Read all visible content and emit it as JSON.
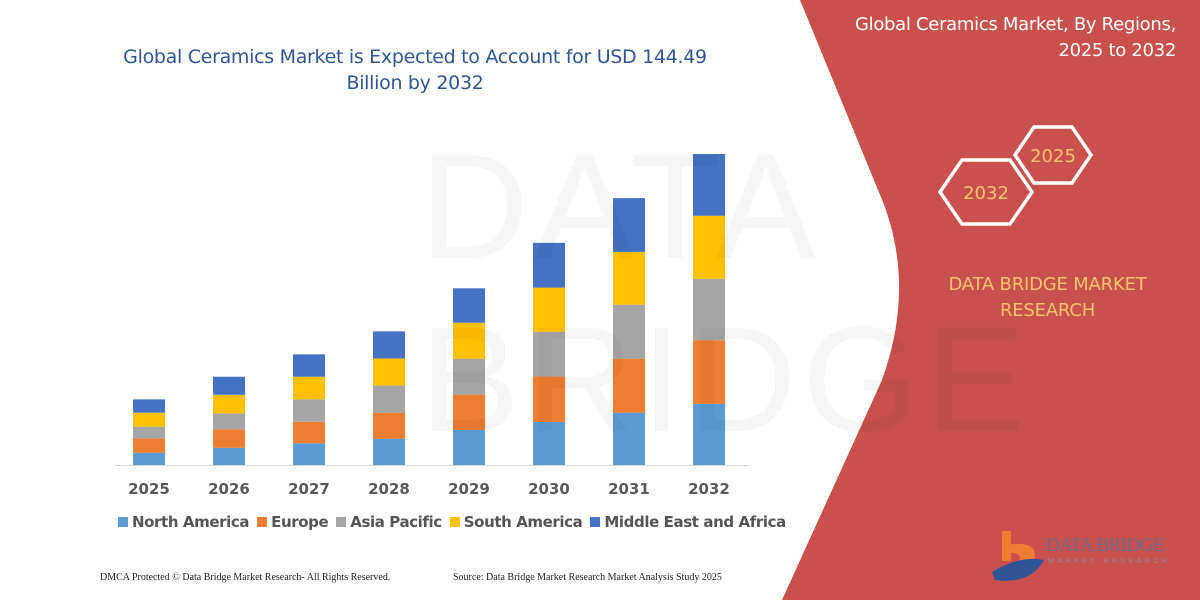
{
  "chart_data": {
    "type": "bar",
    "stacked": true,
    "title": "Global Ceramics Market is Expected to Account for USD 144.49 Billion by 2032",
    "title_lines": [
      "Global Ceramics Market is Expected to Account for USD 144.49",
      "Billion by 2032"
    ],
    "categories": [
      "2025",
      "2026",
      "2027",
      "2028",
      "2029",
      "2030",
      "2031",
      "2032"
    ],
    "series": [
      {
        "name": "North America",
        "color": "#5b9bd5",
        "values": [
          5.7,
          8.0,
          10.1,
          12.2,
          16.3,
          20.0,
          24.3,
          28.4
        ]
      },
      {
        "name": "Europe",
        "color": "#ed7d31",
        "values": [
          6.7,
          8.6,
          10.0,
          12.1,
          16.4,
          21.1,
          25.1,
          29.6
        ]
      },
      {
        "name": "Asia Pacific",
        "color": "#a5a5a5",
        "values": [
          5.4,
          7.4,
          10.4,
          12.6,
          16.7,
          20.8,
          25.1,
          28.5
        ]
      },
      {
        "name": "South America",
        "color": "#ffc000",
        "values": [
          6.5,
          8.6,
          10.5,
          12.6,
          16.7,
          20.5,
          24.5,
          29.3
        ]
      },
      {
        "name": "Middle East and Africa",
        "color": "#4472c4",
        "values": [
          6.2,
          8.4,
          10.4,
          12.6,
          16.0,
          20.8,
          25.0,
          28.7
        ]
      }
    ],
    "xlabel": "",
    "ylabel": "",
    "ylim": [
      0,
      144.49
    ],
    "grid": false,
    "y_axis_visible": false,
    "legend_position": "bottom"
  },
  "side_panel": {
    "title_lines": [
      "Global Ceramics Market, By Regions,",
      "2025 to 2032"
    ],
    "hex_years": [
      "2025",
      "2032"
    ],
    "brand_lines": [
      "DATA BRIDGE MARKET",
      "RESEARCH"
    ],
    "logo_text": "DATA BRIDGE",
    "logo_subtext": "MARKET RESEARCH",
    "panel_color": "#c9504c",
    "accent_color": "#f7c46c"
  },
  "footer": {
    "left": "DMCA Protected © Data Bridge Market Research-  All Rights Reserved.",
    "right": "Source: Data Bridge Market Research  Market Analysis Study 2025"
  }
}
